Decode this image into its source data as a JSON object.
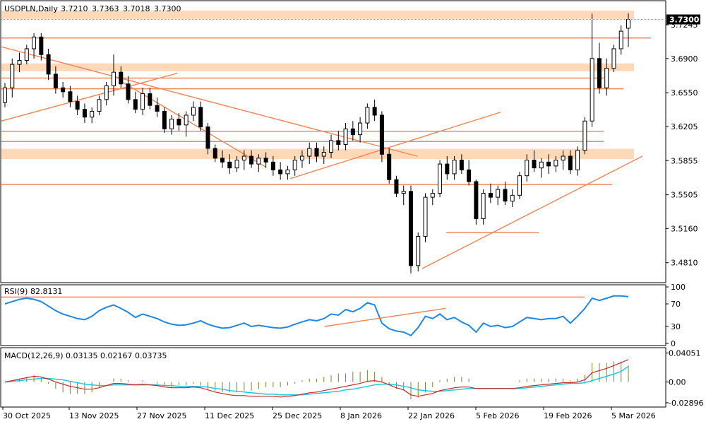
{
  "colors": {
    "frame": "#000000",
    "orange": "#f08a5d",
    "zone": "#fdd9b9",
    "rsi": "#1e88e5",
    "macd_main": "#c62828",
    "macd_signal": "#26c6da",
    "hist": "#6d8a2a",
    "bull": "#ffffff",
    "bear": "#000000"
  },
  "chart_data": {
    "type": "candlestick",
    "symbol": "USDPLN",
    "timeframe": "Daily",
    "header": {
      "title": "USDPLN,Daily",
      "open": "3.7210",
      "high": "3.7363",
      "low": "3.7018",
      "close": "3.7300"
    },
    "last_price_label": "3.7300",
    "price_axis": {
      "range": [
        3.462,
        3.747
      ],
      "ticks": [
        "3.7245",
        "3.6900",
        "3.6550",
        "3.6205",
        "3.5855",
        "3.5505",
        "3.5160",
        "3.4810"
      ]
    },
    "x_axis_labels": [
      "30 Oct 2025",
      "13 Nov 2025",
      "27 Nov 2025",
      "11 Dec 2025",
      "25 Dec 2025",
      "8 Jan 2026",
      "22 Jan 2026",
      "5 Feb 2026",
      "19 Feb 2026",
      "5 Mar 2026"
    ],
    "candles": [
      [
        3.645,
        3.665,
        3.64,
        3.66
      ],
      [
        3.66,
        3.69,
        3.65,
        3.684
      ],
      [
        3.684,
        3.696,
        3.676,
        3.688
      ],
      [
        3.688,
        3.704,
        3.684,
        3.7
      ],
      [
        3.7,
        3.716,
        3.69,
        3.712
      ],
      [
        3.712,
        3.716,
        3.688,
        3.694
      ],
      [
        3.694,
        3.7,
        3.668,
        3.674
      ],
      [
        3.674,
        3.682,
        3.654,
        3.66
      ],
      [
        3.66,
        3.666,
        3.65,
        3.656
      ],
      [
        3.656,
        3.662,
        3.64,
        3.646
      ],
      [
        3.646,
        3.652,
        3.632,
        3.638
      ],
      [
        3.638,
        3.644,
        3.624,
        3.63
      ],
      [
        3.63,
        3.64,
        3.624,
        3.636
      ],
      [
        3.636,
        3.652,
        3.632,
        3.648
      ],
      [
        3.648,
        3.666,
        3.642,
        3.662
      ],
      [
        3.662,
        3.694,
        3.652,
        3.676
      ],
      [
        3.676,
        3.682,
        3.66,
        3.664
      ],
      [
        3.664,
        3.672,
        3.644,
        3.648
      ],
      [
        3.648,
        3.656,
        3.634,
        3.638
      ],
      [
        3.638,
        3.66,
        3.632,
        3.654
      ],
      [
        3.654,
        3.66,
        3.638,
        3.642
      ],
      [
        3.642,
        3.65,
        3.63,
        3.636
      ],
      [
        3.636,
        3.64,
        3.614,
        3.618
      ],
      [
        3.618,
        3.632,
        3.612,
        3.628
      ],
      [
        3.628,
        3.634,
        3.616,
        3.622
      ],
      [
        3.622,
        3.636,
        3.61,
        3.632
      ],
      [
        3.632,
        3.646,
        3.626,
        3.64
      ],
      [
        3.64,
        3.646,
        3.616,
        3.62
      ],
      [
        3.62,
        3.624,
        3.592,
        3.598
      ],
      [
        3.598,
        3.602,
        3.584,
        3.588
      ],
      [
        3.588,
        3.596,
        3.578,
        3.584
      ],
      [
        3.584,
        3.592,
        3.572,
        3.578
      ],
      [
        3.578,
        3.59,
        3.574,
        3.586
      ],
      [
        3.586,
        3.596,
        3.576,
        3.59
      ],
      [
        3.59,
        3.596,
        3.578,
        3.582
      ],
      [
        3.582,
        3.592,
        3.574,
        3.588
      ],
      [
        3.588,
        3.594,
        3.578,
        3.584
      ],
      [
        3.584,
        3.59,
        3.57,
        3.576
      ],
      [
        3.576,
        3.584,
        3.566,
        3.572
      ],
      [
        3.572,
        3.58,
        3.566,
        3.576
      ],
      [
        3.576,
        3.59,
        3.57,
        3.586
      ],
      [
        3.586,
        3.596,
        3.578,
        3.59
      ],
      [
        3.59,
        3.604,
        3.582,
        3.598
      ],
      [
        3.598,
        3.604,
        3.584,
        3.59
      ],
      [
        3.59,
        3.6,
        3.582,
        3.594
      ],
      [
        3.594,
        3.612,
        3.588,
        3.606
      ],
      [
        3.606,
        3.616,
        3.596,
        3.602
      ],
      [
        3.602,
        3.624,
        3.596,
        3.618
      ],
      [
        3.618,
        3.626,
        3.606,
        3.612
      ],
      [
        3.612,
        3.63,
        3.604,
        3.624
      ],
      [
        3.624,
        3.644,
        3.618,
        3.64
      ],
      [
        3.64,
        3.648,
        3.626,
        3.632
      ],
      [
        3.632,
        3.636,
        3.584,
        3.592
      ],
      [
        3.592,
        3.598,
        3.562,
        3.566
      ],
      [
        3.566,
        3.57,
        3.548,
        3.552
      ],
      [
        3.552,
        3.56,
        3.54,
        3.554
      ],
      [
        3.554,
        3.56,
        3.47,
        3.478
      ],
      [
        3.478,
        3.512,
        3.472,
        3.508
      ],
      [
        3.508,
        3.552,
        3.502,
        3.548
      ],
      [
        3.548,
        3.556,
        3.54,
        3.552
      ],
      [
        3.552,
        3.586,
        3.548,
        3.582
      ],
      [
        3.582,
        3.59,
        3.566,
        3.572
      ],
      [
        3.572,
        3.59,
        3.566,
        3.586
      ],
      [
        3.586,
        3.592,
        3.572,
        3.576
      ],
      [
        3.576,
        3.586,
        3.56,
        3.564
      ],
      [
        3.564,
        3.566,
        3.52,
        3.526
      ],
      [
        3.526,
        3.556,
        3.52,
        3.552
      ],
      [
        3.552,
        3.562,
        3.542,
        3.548
      ],
      [
        3.548,
        3.56,
        3.54,
        3.556
      ],
      [
        3.556,
        3.564,
        3.54,
        3.544
      ],
      [
        3.544,
        3.556,
        3.538,
        3.55
      ],
      [
        3.55,
        3.574,
        3.546,
        3.57
      ],
      [
        3.57,
        3.592,
        3.564,
        3.586
      ],
      [
        3.586,
        3.596,
        3.574,
        3.578
      ],
      [
        3.578,
        3.588,
        3.568,
        3.584
      ],
      [
        3.584,
        3.592,
        3.572,
        3.58
      ],
      [
        3.58,
        3.59,
        3.574,
        3.586
      ],
      [
        3.586,
        3.596,
        3.576,
        3.59
      ],
      [
        3.59,
        3.596,
        3.572,
        3.576
      ],
      [
        3.576,
        3.6,
        3.57,
        3.596
      ],
      [
        3.596,
        3.63,
        3.592,
        3.626
      ],
      [
        3.626,
        3.736,
        3.62,
        3.69
      ],
      [
        3.69,
        3.706,
        3.654,
        3.66
      ],
      [
        3.66,
        3.69,
        3.652,
        3.68
      ],
      [
        3.68,
        3.704,
        3.676,
        3.7
      ],
      [
        3.7,
        3.724,
        3.694,
        3.718
      ],
      [
        3.721,
        3.7363,
        3.7018,
        3.73
      ]
    ],
    "zones": [
      [
        3.7305,
        3.739
      ],
      [
        3.685,
        3.677
      ],
      [
        3.5975,
        3.587
      ]
    ],
    "horizontal_lines": [
      3.711,
      3.67,
      3.659,
      3.6155,
      3.605,
      3.561,
      3.512
    ],
    "trendlines": [
      {
        "from": [
          0,
          3.702
        ],
        "to": [
          85,
          3.59
        ]
      },
      {
        "from": [
          0,
          3.626
        ],
        "to": [
          36,
          3.675
        ]
      },
      {
        "from": [
          24,
          3.668
        ],
        "to": [
          54,
          3.579
        ]
      },
      {
        "from": [
          59,
          3.567
        ],
        "to": [
          102,
          3.635
        ]
      },
      {
        "from": [
          86,
          3.475
        ],
        "to": [
          131,
          3.59
        ]
      }
    ],
    "rsi": {
      "label": "RSI(9) 82.8131",
      "period": 9,
      "value": 82.8131,
      "ticks": [
        "100",
        "70",
        "30",
        "0"
      ],
      "levels": [
        82
      ],
      "values": [
        70,
        74,
        78,
        80,
        78,
        74,
        66,
        58,
        52,
        48,
        44,
        42,
        48,
        58,
        64,
        68,
        62,
        55,
        46,
        52,
        48,
        44,
        38,
        34,
        32,
        33,
        36,
        40,
        34,
        30,
        27,
        28,
        32,
        36,
        30,
        32,
        30,
        28,
        27,
        29,
        34,
        38,
        42,
        40,
        44,
        52,
        50,
        60,
        56,
        62,
        72,
        68,
        36,
        26,
        22,
        20,
        14,
        28,
        48,
        44,
        52,
        42,
        46,
        38,
        32,
        20,
        36,
        30,
        32,
        28,
        30,
        38,
        46,
        44,
        42,
        44,
        44,
        48,
        36,
        48,
        62,
        80,
        76,
        80,
        84,
        84,
        82.8131
      ],
      "trendline": {
        "from": [
          58,
          30
        ],
        "to": [
          80,
          62
        ]
      }
    },
    "macd": {
      "label": "MACD(12,26,9) 0.03135 0.02167 0.03735",
      "params": [
        12,
        26,
        9
      ],
      "main": 0.03135,
      "signal": 0.02167,
      "hist": 0.03735,
      "ticks": [
        "0.04051",
        "0.00",
        "-0.02896"
      ],
      "range": [
        -0.033,
        0.046
      ],
      "main_values": [
        0.0,
        0.002,
        0.004,
        0.006,
        0.008,
        0.007,
        0.004,
        0.0,
        -0.003,
        -0.006,
        -0.008,
        -0.01,
        -0.01,
        -0.008,
        -0.005,
        -0.002,
        -0.002,
        -0.003,
        -0.004,
        -0.003,
        -0.004,
        -0.005,
        -0.007,
        -0.008,
        -0.008,
        -0.008,
        -0.007,
        -0.008,
        -0.011,
        -0.014,
        -0.016,
        -0.018,
        -0.019,
        -0.019,
        -0.02,
        -0.02,
        -0.02,
        -0.02,
        -0.021,
        -0.02,
        -0.019,
        -0.017,
        -0.015,
        -0.014,
        -0.012,
        -0.01,
        -0.008,
        -0.006,
        -0.004,
        -0.002,
        0.001,
        0.002,
        0.0,
        -0.004,
        -0.008,
        -0.011,
        -0.018,
        -0.02,
        -0.018,
        -0.016,
        -0.012,
        -0.01,
        -0.008,
        -0.007,
        -0.007,
        -0.009,
        -0.009,
        -0.009,
        -0.009,
        -0.009,
        -0.009,
        -0.008,
        -0.006,
        -0.005,
        -0.004,
        -0.003,
        -0.002,
        -0.001,
        -0.001,
        0.0,
        0.003,
        0.013,
        0.016,
        0.019,
        0.023,
        0.027,
        0.03135
      ],
      "signal_values": [
        0.0,
        0.001,
        0.002,
        0.003,
        0.004,
        0.005,
        0.005,
        0.004,
        0.003,
        0.001,
        -0.001,
        -0.003,
        -0.004,
        -0.005,
        -0.005,
        -0.004,
        -0.004,
        -0.004,
        -0.004,
        -0.004,
        -0.004,
        -0.004,
        -0.005,
        -0.005,
        -0.006,
        -0.006,
        -0.006,
        -0.006,
        -0.007,
        -0.009,
        -0.01,
        -0.012,
        -0.013,
        -0.014,
        -0.015,
        -0.016,
        -0.017,
        -0.017,
        -0.018,
        -0.018,
        -0.018,
        -0.018,
        -0.017,
        -0.016,
        -0.015,
        -0.014,
        -0.013,
        -0.011,
        -0.01,
        -0.008,
        -0.006,
        -0.004,
        -0.003,
        -0.003,
        -0.004,
        -0.006,
        -0.008,
        -0.011,
        -0.012,
        -0.013,
        -0.013,
        -0.012,
        -0.011,
        -0.01,
        -0.009,
        -0.009,
        -0.009,
        -0.009,
        -0.009,
        -0.009,
        -0.009,
        -0.009,
        -0.008,
        -0.007,
        -0.006,
        -0.005,
        -0.004,
        -0.003,
        -0.002,
        -0.002,
        -0.001,
        0.002,
        0.005,
        0.008,
        0.011,
        0.015,
        0.02167
      ]
    }
  }
}
